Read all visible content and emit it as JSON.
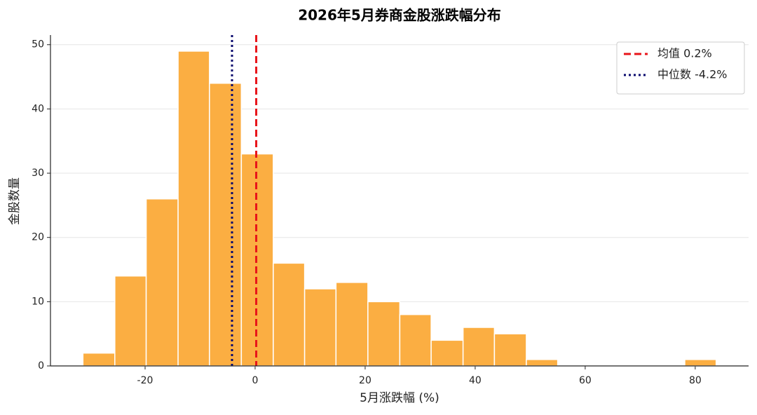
{
  "chart_data": {
    "type": "histogram",
    "title": "2026年5月券商金股涨跌幅分布",
    "x_label": "5月涨跌幅 (%)",
    "y_label": "金股数量",
    "bins": [
      -31.3,
      -25.5,
      -19.8,
      -14.0,
      -8.3,
      -2.5,
      3.3,
      9.0,
      14.7,
      20.5,
      26.3,
      32.0,
      37.8,
      43.5,
      49.3,
      55.0,
      60.8,
      66.5,
      72.3,
      78.1,
      83.8
    ],
    "counts": [
      2,
      14,
      26,
      49,
      44,
      33,
      16,
      12,
      13,
      10,
      8,
      4,
      6,
      5,
      1,
      0,
      0,
      0,
      0,
      1
    ],
    "color": "#fbae42",
    "edge_color": "#ffffff",
    "xlim": [
      -37.2,
      89.7
    ],
    "ylim": [
      0,
      51.5
    ],
    "xticks": [
      -20,
      0,
      20,
      40,
      60,
      80
    ],
    "yticks": [
      0,
      10,
      20,
      30,
      40,
      50
    ],
    "grid": true,
    "legend": "upper right",
    "reference_lines": [
      {
        "name": "均值 0.2%",
        "value": 0.2,
        "color": "#e8141a",
        "style": "dashed"
      },
      {
        "name": "中位数 -4.2%",
        "value": -4.2,
        "color": "#0a0a6e",
        "style": "dotted"
      }
    ]
  }
}
